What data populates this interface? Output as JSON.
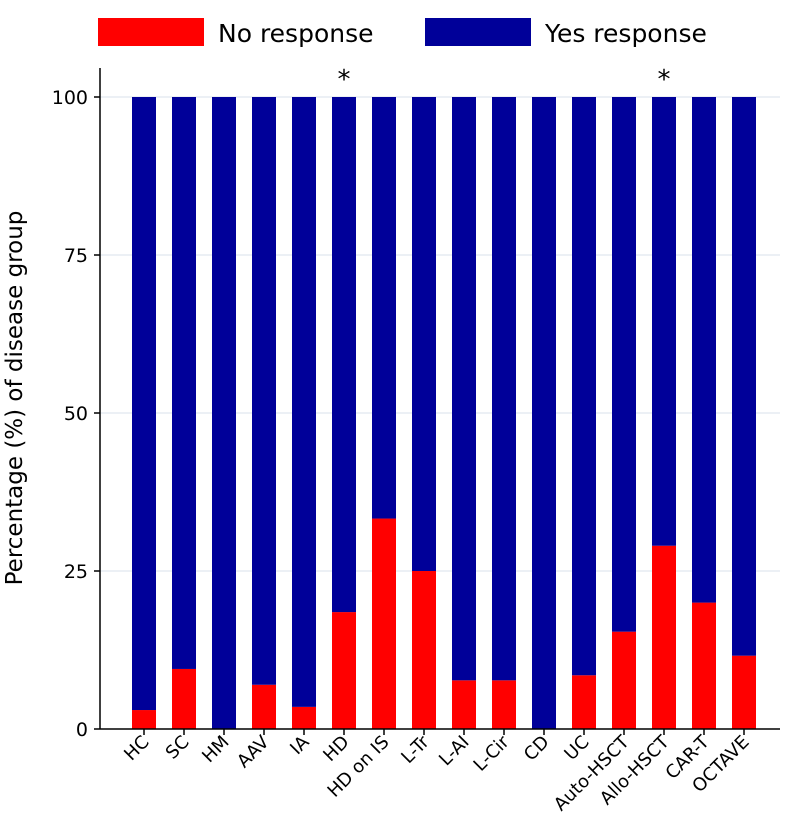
{
  "chart_data": {
    "type": "bar",
    "stacked": true,
    "title": "",
    "xlabel": "",
    "ylabel": "Percentage (%) of disease group",
    "ylim": [
      0,
      100
    ],
    "yticks": [
      0,
      25,
      50,
      75,
      100
    ],
    "grid": "horizontal",
    "legend_position": "top",
    "categories": [
      "HC",
      "SC",
      "HM",
      "AAV",
      "IA",
      "HD",
      "HD on IS",
      "L-Tr",
      "L-AI",
      "L-Cir",
      "CD",
      "UC",
      "Auto-HSCT",
      "Allo-HSCT",
      "CAR-T",
      "OCTAVE"
    ],
    "series": [
      {
        "name": "No response",
        "color": "#ff0000",
        "values": [
          3,
          9.5,
          0,
          7,
          3.5,
          18.5,
          33.3,
          25,
          7.7,
          7.7,
          0,
          8.5,
          15.4,
          29,
          20,
          11.6
        ]
      },
      {
        "name": "Yes response",
        "color": "#000099",
        "values": [
          97,
          90.5,
          100,
          93,
          96.5,
          81.5,
          66.7,
          75,
          92.3,
          92.3,
          100,
          91.5,
          84.6,
          71,
          80,
          88.4
        ]
      }
    ],
    "annotations": [
      {
        "category": "HD",
        "text": "*"
      },
      {
        "category": "Allo-HSCT",
        "text": "*"
      }
    ]
  }
}
